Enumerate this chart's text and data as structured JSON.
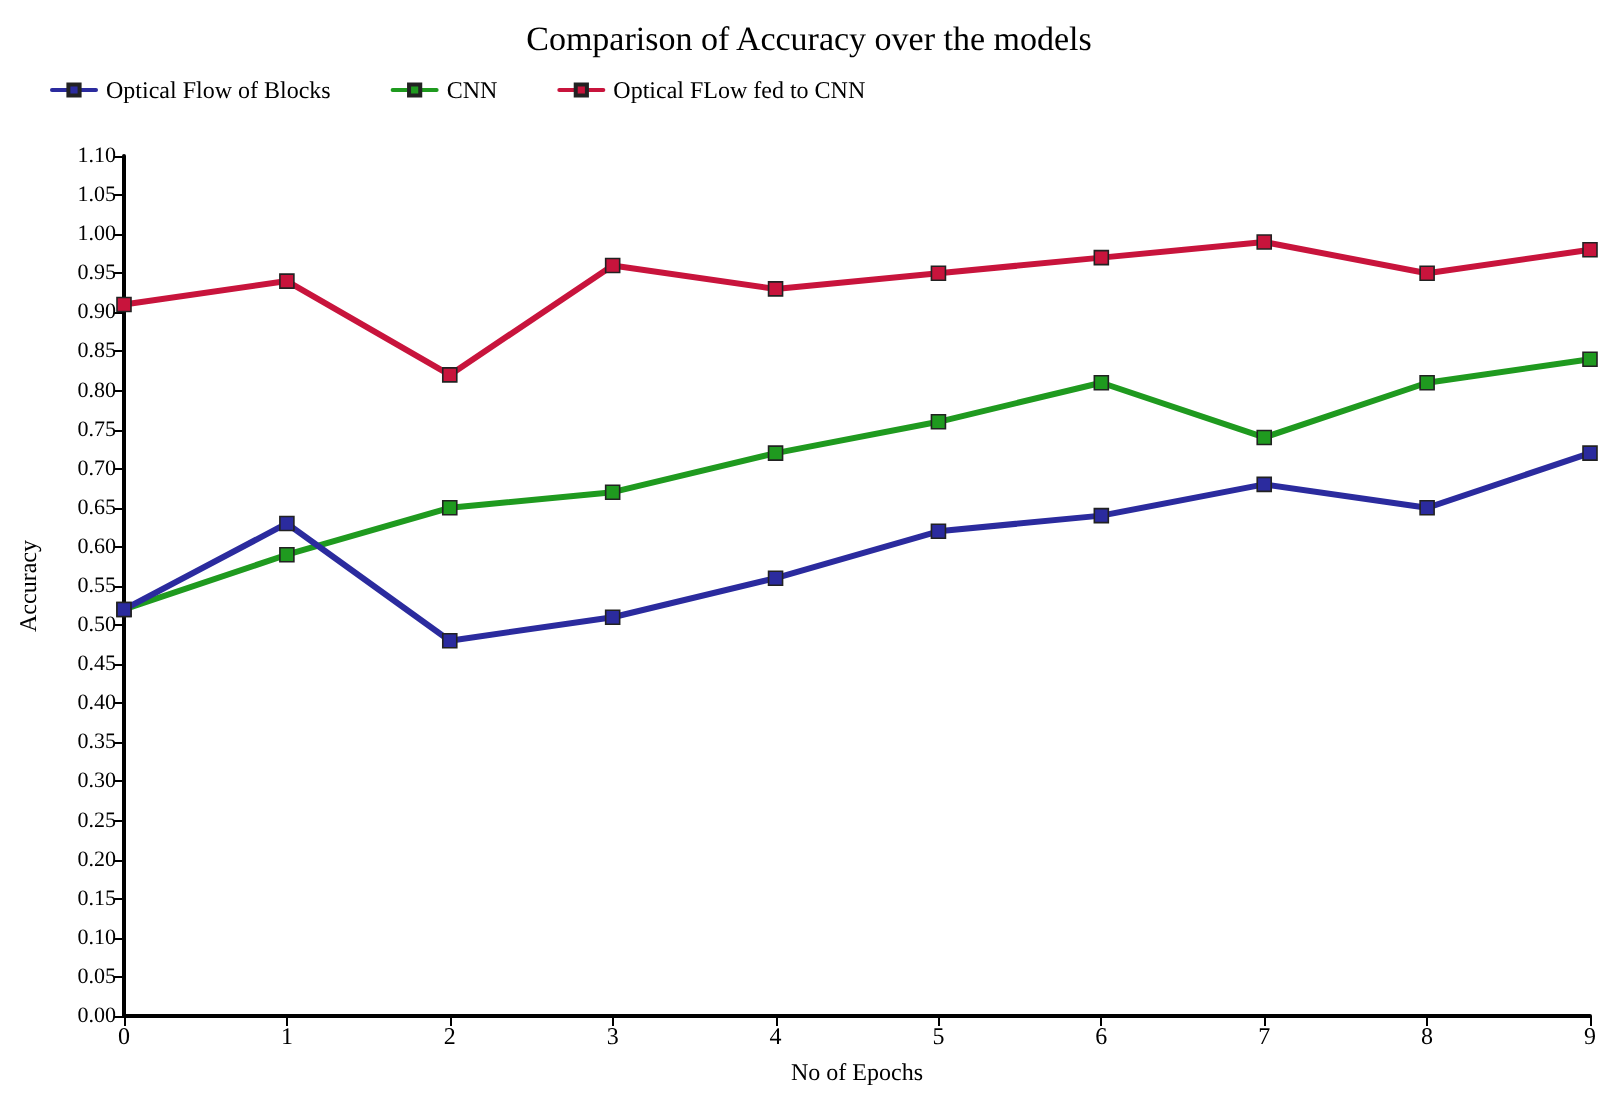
{
  "chart_data": {
    "type": "line",
    "title": "Comparison of Accuracy over the models",
    "xlabel": "No of Epochs",
    "ylabel": "Accuracy",
    "x": [
      0,
      1,
      2,
      3,
      4,
      5,
      6,
      7,
      8,
      9
    ],
    "series": [
      {
        "name": "Optical Flow of Blocks",
        "color": "#2b2b9e",
        "values": [
          0.52,
          0.63,
          0.48,
          0.51,
          0.56,
          0.62,
          0.64,
          0.68,
          0.65,
          0.72
        ]
      },
      {
        "name": "CNN",
        "color": "#1f9a1f",
        "values": [
          0.52,
          0.59,
          0.65,
          0.67,
          0.72,
          0.76,
          0.81,
          0.74,
          0.81,
          0.84
        ]
      },
      {
        "name": "Optical FLow fed to CNN",
        "color": "#c8143c",
        "values": [
          0.91,
          0.94,
          0.82,
          0.96,
          0.93,
          0.95,
          0.97,
          0.99,
          0.95,
          0.98
        ]
      }
    ],
    "xlim": [
      0,
      9
    ],
    "xticks": [
      0,
      1,
      2,
      3,
      4,
      5,
      6,
      7,
      8,
      9
    ],
    "ylim": [
      0,
      1.1
    ],
    "yticks": [
      {
        "value": 0,
        "label": "0.00"
      },
      {
        "value": 0.05,
        "label": "0.05"
      },
      {
        "value": 0.1,
        "label": "0.10"
      },
      {
        "value": 0.15,
        "label": "0.15"
      },
      {
        "value": 0.2,
        "label": "0.20"
      },
      {
        "value": 0.25,
        "label": "0.25"
      },
      {
        "value": 0.3,
        "label": "0.30"
      },
      {
        "value": 0.35,
        "label": "0.35"
      },
      {
        "value": 0.4,
        "label": "0.40"
      },
      {
        "value": 0.45,
        "label": "0.45"
      },
      {
        "value": 0.5,
        "label": "0.50"
      },
      {
        "value": 0.55,
        "label": "0.55"
      },
      {
        "value": 0.6,
        "label": "0.60"
      },
      {
        "value": 0.65,
        "label": "0.65"
      },
      {
        "value": 0.7,
        "label": "0.70"
      },
      {
        "value": 0.75,
        "label": "0.75"
      },
      {
        "value": 0.8,
        "label": "0.80"
      },
      {
        "value": 0.85,
        "label": "0.85"
      },
      {
        "value": 0.9,
        "label": "0.90"
      },
      {
        "value": 0.95,
        "label": "0.95"
      },
      {
        "value": 1.0,
        "label": "1.00"
      },
      {
        "value": 1.05,
        "label": "1.05"
      },
      {
        "value": 1.1,
        "label": "1.10"
      }
    ],
    "grid": false,
    "legend": "top left",
    "marker": "square",
    "line_style": "solid"
  }
}
